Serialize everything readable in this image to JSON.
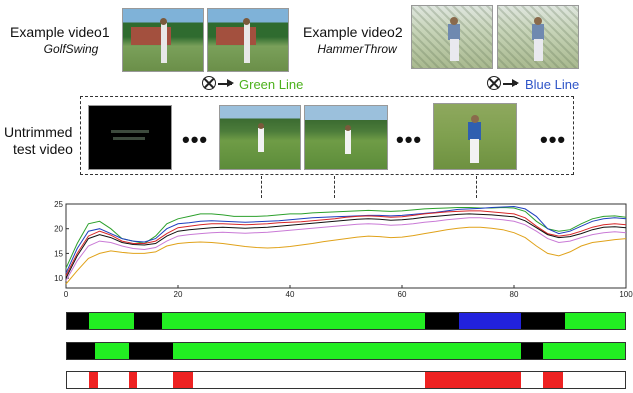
{
  "example1": {
    "title": "Example video1",
    "action": "GolfSwing",
    "line_label": "Green Line",
    "line_color": "#4cb11c"
  },
  "example2": {
    "title": "Example video2",
    "action": "HammerThrow",
    "line_label": "Blue Line",
    "line_color": "#2f55c8"
  },
  "test": {
    "label_line1": "Untrimmed",
    "label_line2": "test video",
    "ellipsis": "•••"
  },
  "chart_data": {
    "type": "line",
    "xlim": [
      0,
      100
    ],
    "ylim": [
      8,
      25
    ],
    "xticks": [
      0,
      20,
      40,
      60,
      80,
      100
    ],
    "yticks": [
      10,
      15,
      20,
      25
    ],
    "x": [
      0,
      2,
      4,
      6,
      8,
      10,
      12,
      14,
      16,
      18,
      20,
      22,
      24,
      26,
      28,
      30,
      32,
      34,
      36,
      38,
      40,
      42,
      44,
      46,
      48,
      50,
      52,
      54,
      56,
      58,
      60,
      62,
      64,
      66,
      68,
      70,
      72,
      74,
      76,
      78,
      80,
      82,
      84,
      86,
      88,
      90,
      92,
      94,
      96,
      98,
      100
    ],
    "series": [
      {
        "color": "#2ca02c",
        "values": [
          12,
          17,
          21,
          21.5,
          20,
          18,
          17.5,
          17,
          18.5,
          21,
          22,
          22.5,
          23,
          23,
          22.8,
          22.5,
          22.5,
          22.5,
          22.6,
          22.8,
          23,
          23,
          23.2,
          23.3,
          23.4,
          23.5,
          23.6,
          23.7,
          23.6,
          23.5,
          23.6,
          23.8,
          24,
          24.1,
          24.2,
          24.3,
          24.3,
          24.2,
          24.2,
          24.3,
          24.2,
          23.5,
          21.5,
          20,
          19.5,
          19.8,
          21,
          22,
          22.5,
          22.6,
          22.3
        ]
      },
      {
        "color": "#1f3fbf",
        "values": [
          11,
          16,
          19.5,
          20,
          19,
          18,
          17.5,
          17.3,
          18,
          20,
          21,
          21.2,
          21.5,
          21.6,
          21.5,
          21.4,
          21.3,
          21.4,
          21.5,
          21.6,
          21.8,
          22,
          22.2,
          22.3,
          22.4,
          22.5,
          22.6,
          22.7,
          22.7,
          22.6,
          22.7,
          22.9,
          23.1,
          23.3,
          23.6,
          23.9,
          24,
          24.1,
          24.3,
          24.4,
          24.5,
          24,
          22.5,
          20,
          19,
          19.5,
          20.5,
          21.5,
          22,
          22.2,
          22
        ]
      },
      {
        "color": "#d62728",
        "values": [
          10.5,
          15,
          18.5,
          19.5,
          18.7,
          17.5,
          17,
          17,
          17.5,
          19,
          20.2,
          20.5,
          20.8,
          21,
          21,
          20.9,
          20.8,
          20.9,
          21,
          21.2,
          21.3,
          21.4,
          21.6,
          21.8,
          22,
          22.3,
          22.5,
          22.6,
          22.5,
          22.3,
          22.4,
          22.7,
          23,
          23.2,
          23.4,
          23.5,
          23.6,
          23.6,
          23.4,
          23.2,
          23,
          22.2,
          20.5,
          19,
          18.5,
          18.8,
          19.5,
          20.3,
          20.8,
          21,
          20.8
        ]
      },
      {
        "color": "#111111",
        "values": [
          10,
          14.5,
          18,
          18.8,
          18.2,
          17.2,
          16.8,
          16.7,
          17,
          18.5,
          19.5,
          19.8,
          20,
          20.2,
          20.3,
          20.2,
          20.1,
          20.2,
          20.3,
          20.5,
          20.7,
          20.9,
          21.1,
          21.3,
          21.5,
          21.7,
          21.9,
          22,
          21.9,
          21.7,
          21.8,
          22,
          22.3,
          22.5,
          22.7,
          22.9,
          23,
          22.9,
          22.8,
          22.6,
          22.4,
          21.6,
          20.2,
          18.8,
          18.2,
          18.4,
          19,
          19.8,
          20.3,
          20.4,
          20.2
        ]
      },
      {
        "color": "#c97ad6",
        "values": [
          9.5,
          13.5,
          16.5,
          17.5,
          17.2,
          16.5,
          16,
          15.8,
          16.2,
          17.5,
          18.5,
          18.8,
          19,
          19.2,
          19.3,
          19.2,
          19.1,
          19.2,
          19.3,
          19.5,
          19.7,
          19.9,
          20.1,
          20.3,
          20.5,
          20.7,
          20.9,
          21,
          20.9,
          20.7,
          20.8,
          21,
          21.3,
          21.5,
          21.8,
          22,
          22.2,
          22.2,
          22,
          21.8,
          21.5,
          20.8,
          19.5,
          18,
          17.2,
          17.5,
          18.2,
          18.8,
          19.2,
          19.4,
          19.2
        ]
      },
      {
        "color": "#e0a21a",
        "values": [
          8.8,
          11.5,
          14,
          15,
          15.5,
          15.2,
          15,
          15,
          15.3,
          16.5,
          17,
          17.2,
          17.3,
          17.2,
          17,
          16.7,
          16.4,
          16.2,
          16.1,
          16.2,
          16.4,
          16.7,
          17,
          17.4,
          17.7,
          18,
          18.3,
          18.5,
          18.4,
          18.2,
          18.3,
          18.6,
          19,
          19.4,
          19.8,
          20.1,
          20.3,
          20.3,
          20.1,
          19.8,
          19.2,
          18.2,
          16.5,
          15,
          14.5,
          15.3,
          16.5,
          17.2,
          17.5,
          17.8,
          18
        ]
      }
    ]
  },
  "timelines": [
    {
      "segments": [
        {
          "s": 0,
          "e": 4,
          "c": "#000000"
        },
        {
          "s": 4,
          "e": 12,
          "c": "#22ee22"
        },
        {
          "s": 12,
          "e": 17,
          "c": "#000000"
        },
        {
          "s": 17,
          "e": 64,
          "c": "#22ee22"
        },
        {
          "s": 64,
          "e": 70,
          "c": "#000000"
        },
        {
          "s": 70,
          "e": 81,
          "c": "#2222dd"
        },
        {
          "s": 81,
          "e": 89,
          "c": "#000000"
        },
        {
          "s": 89,
          "e": 100,
          "c": "#22ee22"
        }
      ]
    },
    {
      "segments": [
        {
          "s": 0,
          "e": 5,
          "c": "#000000"
        },
        {
          "s": 5,
          "e": 11,
          "c": "#22ee22"
        },
        {
          "s": 11,
          "e": 19,
          "c": "#000000"
        },
        {
          "s": 19,
          "e": 81,
          "c": "#22ee22"
        },
        {
          "s": 81,
          "e": 85,
          "c": "#000000"
        },
        {
          "s": 85,
          "e": 100,
          "c": "#22ee22"
        }
      ]
    },
    {
      "segments": [
        {
          "s": 0,
          "e": 100,
          "c": "#ffffff"
        },
        {
          "s": 4,
          "e": 5.5,
          "c": "#ee2222"
        },
        {
          "s": 11,
          "e": 12.5,
          "c": "#ee2222"
        },
        {
          "s": 19,
          "e": 22.5,
          "c": "#ee2222"
        },
        {
          "s": 64,
          "e": 81,
          "c": "#ee2222"
        },
        {
          "s": 85,
          "e": 88.5,
          "c": "#ee2222"
        }
      ]
    }
  ]
}
